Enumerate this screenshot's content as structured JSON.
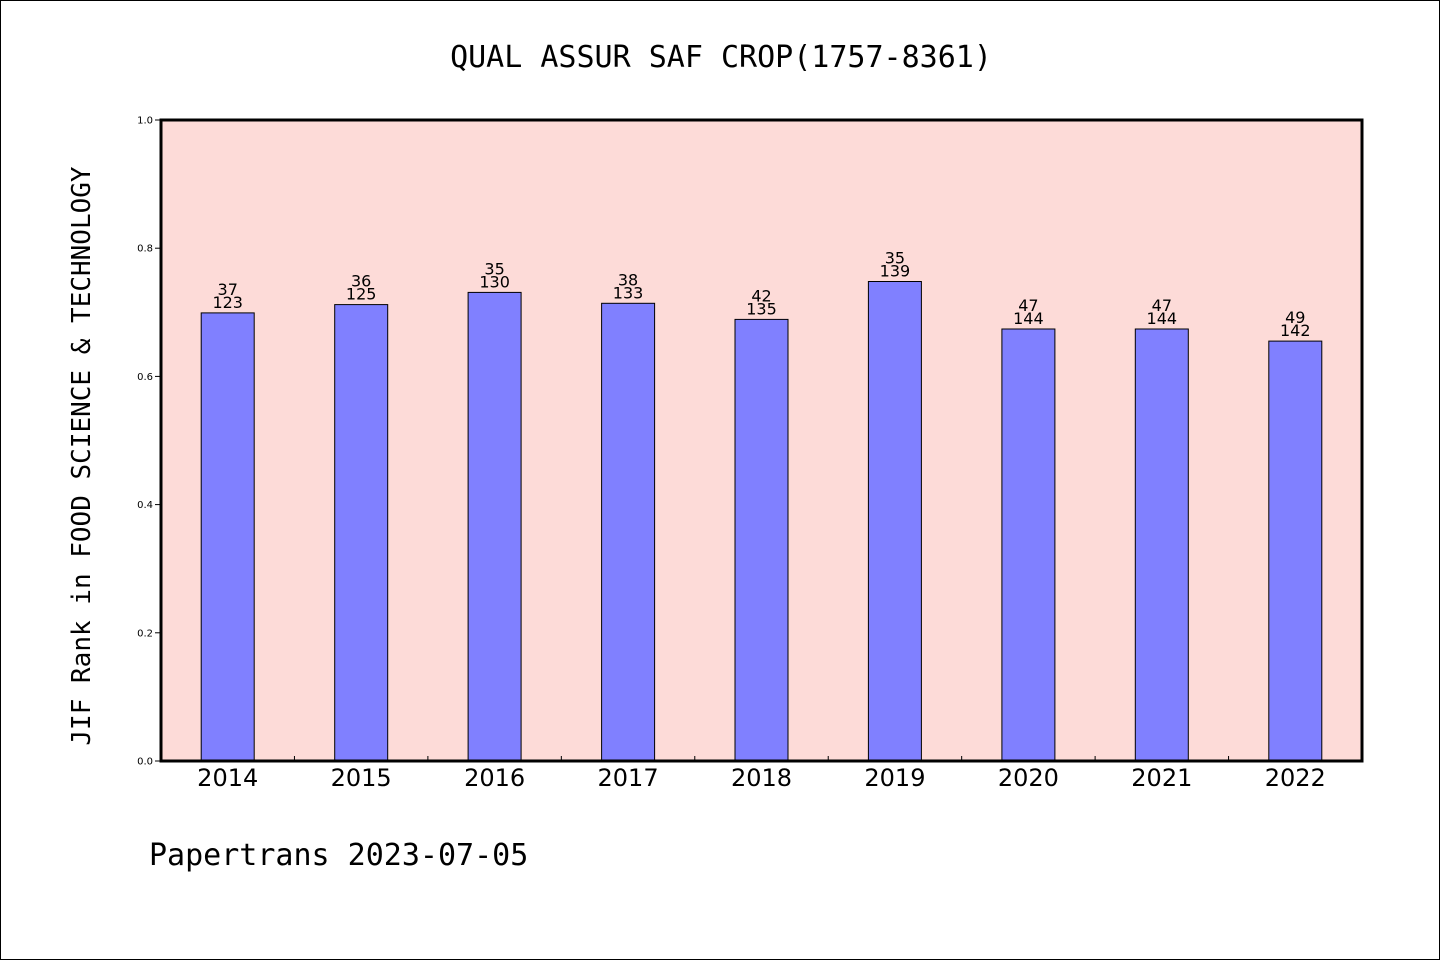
{
  "chart_data": {
    "type": "bar",
    "title": "QUAL ASSUR SAF CROP(1757-8361)",
    "ylabel": "JIF Rank in FOOD SCIENCE & TECHNOLOGY",
    "xlabel": "",
    "ylim": [
      0,
      1.0
    ],
    "yticks": [
      "0.0",
      "0.2",
      "0.4",
      "0.6",
      "0.8",
      "1.0"
    ],
    "categories": [
      "2014",
      "2015",
      "2016",
      "2017",
      "2018",
      "2019",
      "2020",
      "2021",
      "2022"
    ],
    "values": [
      0.699,
      0.712,
      0.731,
      0.714,
      0.689,
      0.748,
      0.674,
      0.674,
      0.655
    ],
    "rank": [
      "37",
      "36",
      "35",
      "38",
      "42",
      "35",
      "47",
      "47",
      "49"
    ],
    "total": [
      "123",
      "125",
      "130",
      "133",
      "135",
      "139",
      "144",
      "144",
      "142"
    ],
    "grid": false,
    "colors": {
      "plot_background": "#fddbd8",
      "bar_fill": "#8080ff",
      "bar_stroke": "#000000"
    }
  },
  "footer": "Papertrans 2023-07-05"
}
